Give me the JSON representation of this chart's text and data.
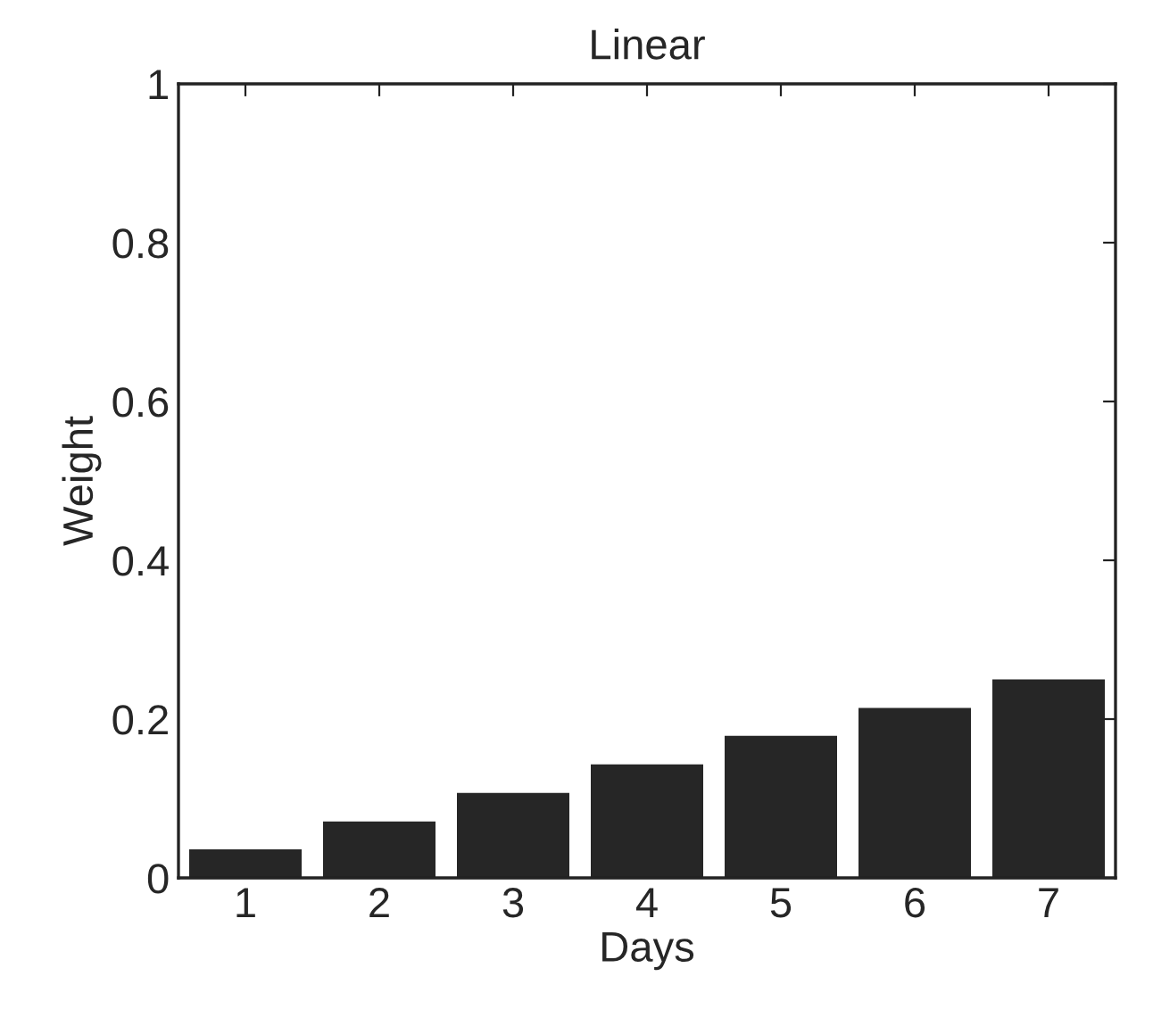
{
  "chart_data": {
    "type": "bar",
    "title": "Linear",
    "xlabel": "Days",
    "ylabel": "Weight",
    "categories": [
      "1",
      "2",
      "3",
      "4",
      "5",
      "6",
      "7"
    ],
    "values": [
      0.036,
      0.071,
      0.107,
      0.143,
      0.179,
      0.214,
      0.25
    ],
    "color": "#262626",
    "ylim": [
      0,
      1
    ],
    "yticks": [
      0,
      0.2,
      0.4,
      0.6,
      0.8,
      1
    ],
    "grid": false
  }
}
